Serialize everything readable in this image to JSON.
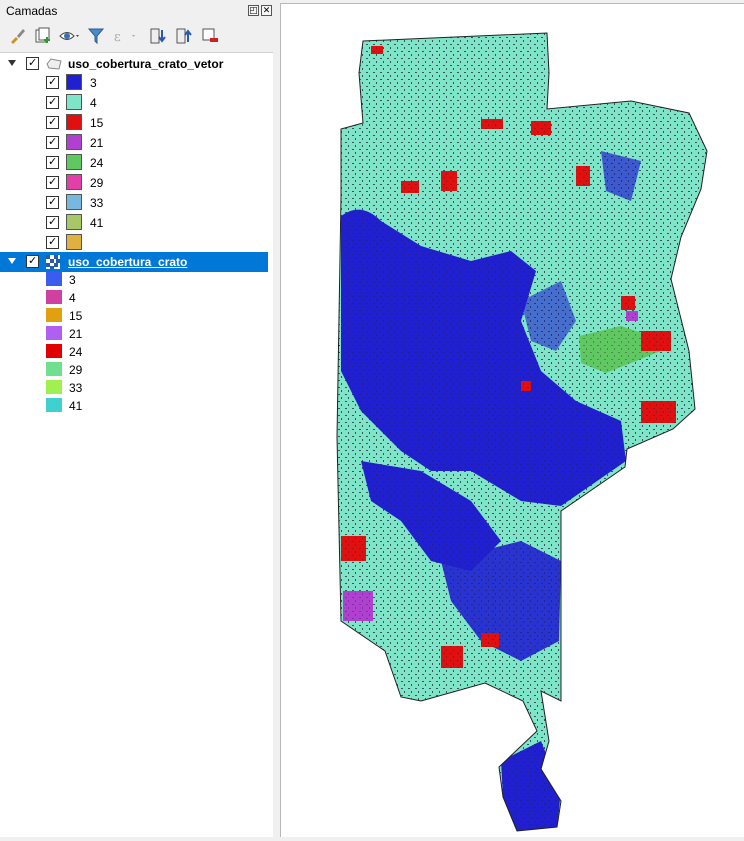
{
  "panel": {
    "title": "Camadas"
  },
  "layers": [
    {
      "name": "uso_cobertura_crato_vetor",
      "checked": true,
      "expanded": true,
      "classes": [
        {
          "label": "3",
          "color": "#2020d0",
          "checked": true
        },
        {
          "label": "4",
          "color": "#7fe5c8",
          "checked": true
        },
        {
          "label": "15",
          "color": "#e01010",
          "checked": true
        },
        {
          "label": "21",
          "color": "#b040d0",
          "checked": true
        },
        {
          "label": "24",
          "color": "#60c860",
          "checked": true
        },
        {
          "label": "29",
          "color": "#e040a8",
          "checked": true
        },
        {
          "label": "33",
          "color": "#78b8e0",
          "checked": true
        },
        {
          "label": "41",
          "color": "#a8c868",
          "checked": true
        },
        {
          "label": "",
          "color": "#e0b040",
          "checked": true
        }
      ]
    },
    {
      "name": "uso_cobertura_crato",
      "checked": true,
      "expanded": true,
      "selected": true,
      "classes": [
        {
          "label": "3",
          "color": "#3a5cf0"
        },
        {
          "label": "4",
          "color": "#d040a0"
        },
        {
          "label": "15",
          "color": "#e0a010"
        },
        {
          "label": "21",
          "color": "#b060f0"
        },
        {
          "label": "24",
          "color": "#e00000"
        },
        {
          "label": "29",
          "color": "#70e090"
        },
        {
          "label": "33",
          "color": "#a0f050"
        },
        {
          "label": "41",
          "color": "#40d0d0"
        }
      ]
    }
  ],
  "map_colors": {
    "forest": "#2020d0",
    "savanna": "#7fe5c8",
    "other": "#e01010",
    "pasture": "#60c860",
    "purple": "#b040d0",
    "outline": "#202020"
  }
}
